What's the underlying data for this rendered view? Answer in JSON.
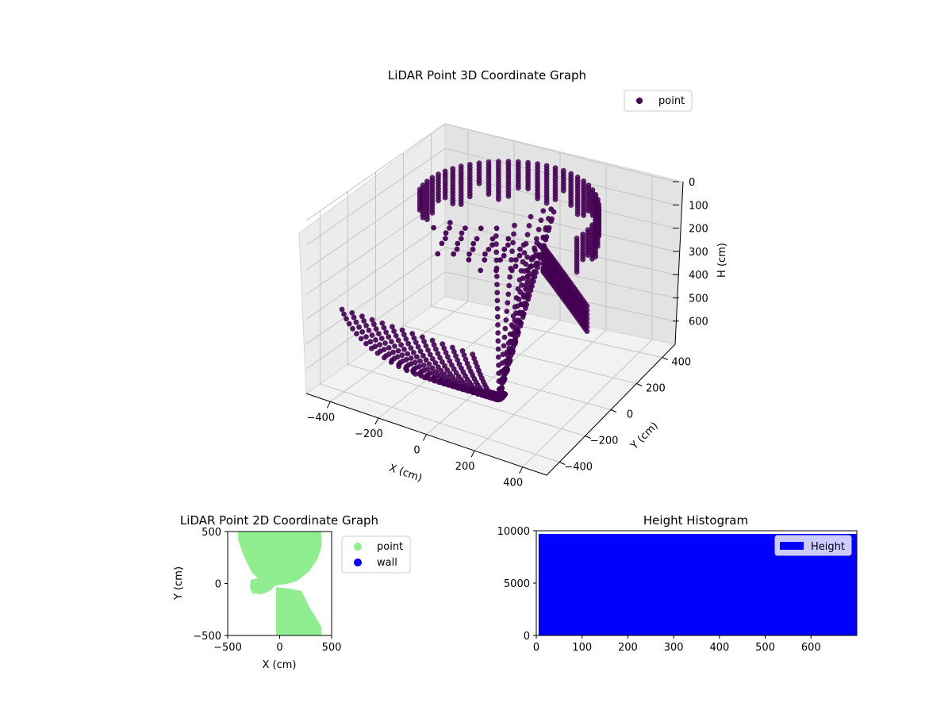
{
  "chart_data": [
    {
      "type": "scatter",
      "projection": "3d",
      "title": "LiDAR Point 3D Coordinate Graph",
      "xlabel": "X (cm)",
      "ylabel": "Y (cm)",
      "zlabel": "H (cm)",
      "x_ticks": [
        "−400",
        "−200",
        "0",
        "200",
        "400"
      ],
      "y_ticks": [
        "−400",
        "−200",
        "0",
        "200",
        "400"
      ],
      "z_ticks": [
        "0",
        "100",
        "200",
        "300",
        "400",
        "500",
        "600"
      ],
      "xlim": [
        -500,
        500
      ],
      "ylim": [
        -500,
        500
      ],
      "zlim": [
        0,
        700
      ],
      "z_inverted": true,
      "grid": true,
      "legend": {
        "placement": "top-right",
        "entries": [
          {
            "label": "point",
            "color": "#440154"
          }
        ]
      },
      "series": [
        {
          "name": "point",
          "color": "#440154"
        }
      ]
    },
    {
      "type": "scatter",
      "title": "LiDAR Point 2D Coordinate Graph",
      "xlabel": "X (cm)",
      "ylabel": "Y (cm)",
      "x_ticks": [
        "−500",
        "0",
        "500"
      ],
      "y_ticks": [
        "500",
        "0",
        "−500"
      ],
      "xlim": [
        -500,
        500
      ],
      "ylim": [
        -500,
        500
      ],
      "legend": {
        "placement": "outside-right",
        "entries": [
          {
            "label": "point",
            "color": "#90ee90"
          },
          {
            "label": "wall",
            "color": "#0000ff"
          }
        ]
      },
      "series": [
        {
          "name": "point",
          "color": "#90ee90"
        },
        {
          "name": "wall",
          "color": "#0000ff"
        }
      ]
    },
    {
      "type": "bar",
      "title": "Height Histogram",
      "x_ticks": [
        "0",
        "100",
        "200",
        "300",
        "400",
        "500",
        "600"
      ],
      "y_ticks": [
        "10000",
        "5000",
        "0"
      ],
      "xlim": [
        0,
        700
      ],
      "ylim": [
        0,
        10000
      ],
      "legend": {
        "placement": "top-right",
        "entries": [
          {
            "label": "Height",
            "color": "#0000ff"
          }
        ]
      },
      "series": [
        {
          "name": "Height",
          "color": "#0000ff",
          "x_range": [
            5,
            700
          ],
          "value": 9700
        }
      ]
    }
  ]
}
